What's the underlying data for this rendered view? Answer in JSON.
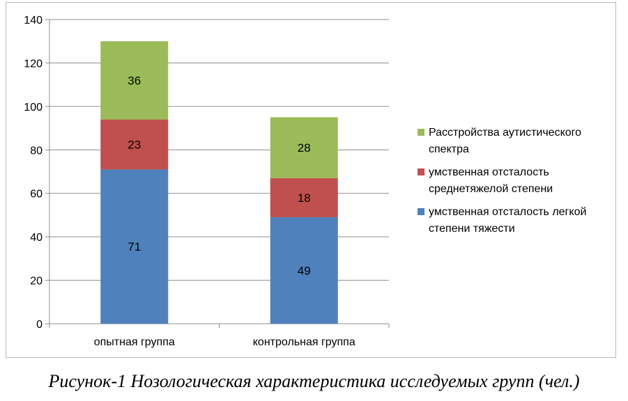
{
  "chart_data": {
    "type": "bar",
    "stacked": true,
    "categories": [
      "опытная группа",
      "контрольная группа"
    ],
    "series": [
      {
        "name": "умственная отсталость легкой степени тяжести",
        "values": [
          71,
          49
        ],
        "color": "#4f81bd"
      },
      {
        "name": "умственная отсталость среднетяжелой степени",
        "values": [
          23,
          18
        ],
        "color": "#c0504d"
      },
      {
        "name": "Расстройства аутистического спектра",
        "values": [
          36,
          28
        ],
        "color": "#9bbb59"
      }
    ],
    "ylim": [
      0,
      140
    ],
    "yticks": [
      0,
      20,
      40,
      60,
      80,
      100,
      120,
      140
    ],
    "grid": true,
    "legend_position": "right",
    "data_labels": true
  },
  "legend_order": [
    2,
    1,
    0
  ],
  "caption": "Рисунок-1 Нозологическая характеристика исследуемых групп (чел.)"
}
